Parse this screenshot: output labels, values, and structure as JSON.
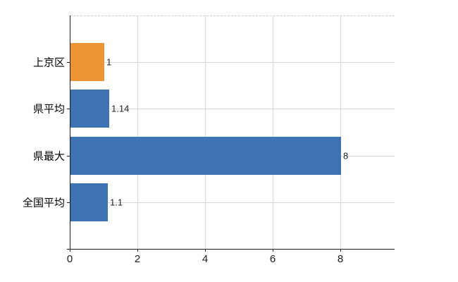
{
  "chart_data": {
    "type": "bar",
    "orientation": "horizontal",
    "categories": [
      "上京区",
      "県平均",
      "県最大",
      "全国平均"
    ],
    "values": [
      1,
      1.14,
      8,
      1.1
    ],
    "value_labels": [
      "1",
      "1.14",
      "8",
      "1.1"
    ],
    "bar_colors": [
      "#ED9434",
      "#3E73B3",
      "#3E73B3",
      "#3E73B3"
    ],
    "x_ticks": [
      0,
      2,
      4,
      6,
      8
    ],
    "xlim": [
      0,
      9.6
    ],
    "title": "",
    "xlabel": "",
    "ylabel": "",
    "grid": true,
    "legend": null
  },
  "colors": {
    "highlight_bar": "#ED9434",
    "default_bar": "#3E73B3",
    "h_gridline": "#D6DCD2",
    "v_gridline": "#DDDAD6",
    "axis": "#1A1A1A",
    "top_border_dashed": "#D6CBCB",
    "value_label": "#262626",
    "background": "#FFFFFF"
  }
}
